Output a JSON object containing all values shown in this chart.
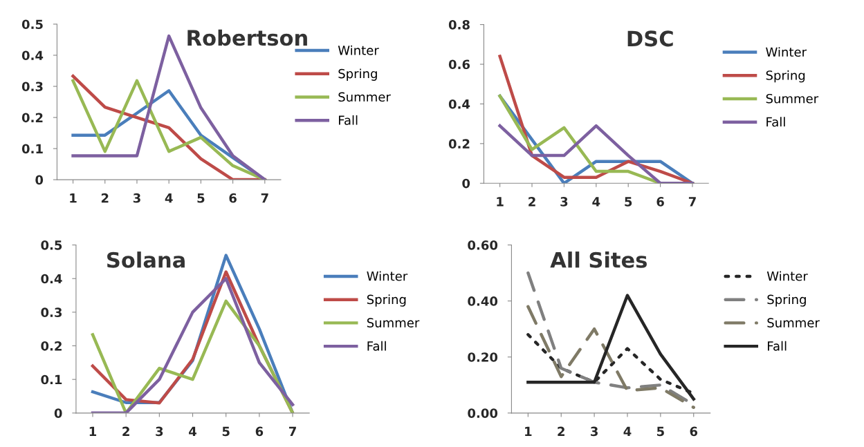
{
  "chart_data": [
    {
      "type": "line",
      "title": "Robertson",
      "categories": [
        "1",
        "2",
        "3",
        "4",
        "5",
        "6",
        "7"
      ],
      "ylim": [
        0,
        0.5
      ],
      "yticks": [
        0,
        0.1,
        0.2,
        0.3,
        0.4,
        0.5
      ],
      "legend": "right",
      "grid": false,
      "series": [
        {
          "name": "Winter",
          "color": "#4a7ebb",
          "values": [
            0.143,
            0.143,
            0.214,
            0.286,
            0.143,
            0.071,
            0
          ]
        },
        {
          "name": "Spring",
          "color": "#be4b48",
          "values": [
            0.333,
            0.233,
            0.2,
            0.167,
            0.067,
            0,
            0
          ]
        },
        {
          "name": "Summer",
          "color": "#98b954",
          "values": [
            0.318,
            0.091,
            0.318,
            0.091,
            0.136,
            0.045,
            0
          ]
        },
        {
          "name": "Fall",
          "color": "#7d60a0",
          "values": [
            0.077,
            0.077,
            0.077,
            0.462,
            0.231,
            0.077,
            0
          ]
        }
      ]
    },
    {
      "type": "line",
      "title": "DSC",
      "categories": [
        "1",
        "2",
        "3",
        "4",
        "5",
        "6",
        "7"
      ],
      "ylim": [
        0,
        0.8
      ],
      "yticks": [
        0,
        0.2,
        0.4,
        0.6,
        0.8
      ],
      "legend": "right",
      "grid": false,
      "series": [
        {
          "name": "Winter",
          "color": "#4a7ebb",
          "values": [
            0.44,
            0.22,
            0,
            0.11,
            0.11,
            0.11,
            0
          ]
        },
        {
          "name": "Spring",
          "color": "#be4b48",
          "values": [
            0.64,
            0.14,
            0.03,
            0.03,
            0.11,
            0.06,
            0
          ]
        },
        {
          "name": "Summer",
          "color": "#98b954",
          "values": [
            0.44,
            0.17,
            0.28,
            0.06,
            0.06,
            0,
            0
          ]
        },
        {
          "name": "Fall",
          "color": "#7d60a0",
          "values": [
            0.29,
            0.14,
            0.14,
            0.29,
            0.14,
            0,
            0
          ]
        }
      ]
    },
    {
      "type": "line",
      "title": "Solana",
      "categories": [
        "1",
        "2",
        "3",
        "4",
        "5",
        "6",
        "7"
      ],
      "ylim": [
        0,
        0.5
      ],
      "yticks": [
        0,
        0.1,
        0.2,
        0.3,
        0.4,
        0.5
      ],
      "legend": "right",
      "grid": false,
      "series": [
        {
          "name": "Winter",
          "color": "#4a7ebb",
          "values": [
            0.063,
            0.031,
            0.031,
            0.156,
            0.469,
            0.25,
            0
          ]
        },
        {
          "name": "Spring",
          "color": "#be4b48",
          "values": [
            0.14,
            0.04,
            0.03,
            0.16,
            0.42,
            0.2,
            0
          ]
        },
        {
          "name": "Summer",
          "color": "#98b954",
          "values": [
            0.233,
            0,
            0.133,
            0.1,
            0.333,
            0.2,
            0
          ]
        },
        {
          "name": "Fall",
          "color": "#7d60a0",
          "values": [
            0,
            0,
            0.1,
            0.3,
            0.4,
            0.15,
            0.025
          ]
        }
      ]
    },
    {
      "type": "line",
      "title": "All Sites",
      "categories": [
        "1",
        "2",
        "3",
        "4",
        "5",
        "6"
      ],
      "ylim": [
        0,
        0.6
      ],
      "yticks": [
        {
          "value": 0,
          "label": "0.00"
        },
        {
          "value": 0.2,
          "label": "0.20"
        },
        {
          "value": 0.4,
          "label": "0.40"
        },
        {
          "value": 0.6,
          "label": "0.60"
        }
      ],
      "legend": "right",
      "grid": false,
      "series": [
        {
          "name": "Winter",
          "color": "#262626",
          "line_style": "dotted",
          "values": [
            0.28,
            0.16,
            0.11,
            0.23,
            0.12,
            0.07
          ]
        },
        {
          "name": "Spring",
          "color": "#808080",
          "line_style": "dashed",
          "values": [
            0.5,
            0.16,
            0.11,
            0.09,
            0.1,
            0.03
          ]
        },
        {
          "name": "Summer",
          "color": "#7f7a66",
          "line_style": "dashed",
          "values": [
            0.38,
            0.13,
            0.3,
            0.08,
            0.09,
            0.02
          ]
        },
        {
          "name": "Fall",
          "color": "#262626",
          "line_style": "solid",
          "values": [
            0.11,
            0.11,
            0.11,
            0.42,
            0.21,
            0.05
          ]
        }
      ]
    }
  ]
}
